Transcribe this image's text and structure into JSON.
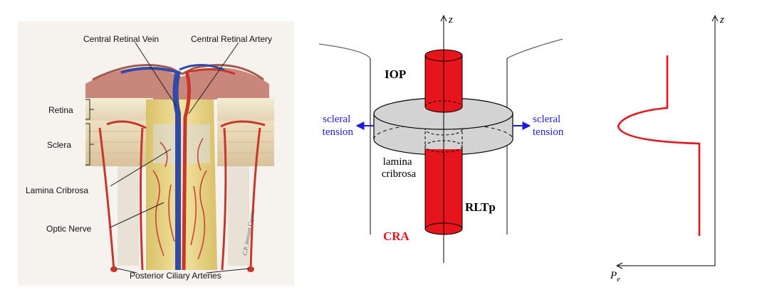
{
  "anatomy": {
    "labels": {
      "central_retinal_vein": "Central Retinal Vein",
      "central_retinal_artery": "Central Retinal Artery",
      "retina": "Retina",
      "sclera": "Sclera",
      "lamina_cribrosa": "Lamina Cribrosa",
      "optic_nerve": "Optic Nerve",
      "posterior_ciliary_arteries": "Posterior Ciliary Arteries"
    },
    "signature": "C.P. Jenison Cuyens"
  },
  "model": {
    "axis_label": "z",
    "iop": "IOP",
    "scleral_tension_left": [
      "scleral",
      "tension"
    ],
    "scleral_tension_right": [
      "scleral",
      "tension"
    ],
    "lamina_label": [
      "lamina",
      "cribrosa"
    ],
    "rltp": "RLTp",
    "cra": "CRA"
  },
  "profile": {
    "z_label": "z",
    "pe_label": "P",
    "pe_sub": "e"
  },
  "colors": {
    "red": "#e8141b",
    "blue": "#1a1ae6",
    "disk_gray": "#d3d3d3",
    "retina_beige": "#efe3c6",
    "sclera_tan": "#e6cfa8",
    "nerve_yellow": "#ecd98a",
    "vessel_red": "#c8352a",
    "vein_blue": "#2f4aa8"
  }
}
